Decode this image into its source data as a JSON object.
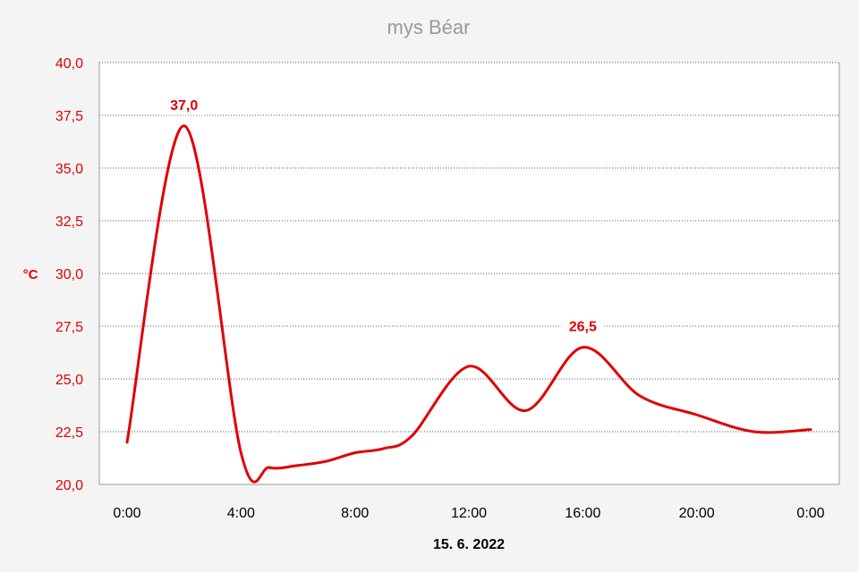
{
  "chart_data": {
    "type": "line",
    "title": "mys Béar",
    "xlabel": "15. 6. 2022",
    "ylabel": "°C",
    "ylim": [
      20,
      40
    ],
    "yticks": [
      "20,0",
      "22,5",
      "25,0",
      "27,5",
      "30,0",
      "32,5",
      "35,0",
      "37,5",
      "40,0"
    ],
    "xlim": [
      0,
      24
    ],
    "xticks": [
      "0:00",
      "4:00",
      "8:00",
      "12:00",
      "16:00",
      "20:00",
      "0:00"
    ],
    "grid": true,
    "series": [
      {
        "color": "#e00000",
        "x": [
          0,
          2,
          4,
          5,
          6,
          7,
          8,
          9,
          10,
          12,
          14,
          16,
          18,
          20,
          22,
          24
        ],
        "y": [
          22.0,
          37.0,
          21.5,
          20.8,
          20.9,
          21.1,
          21.5,
          21.7,
          22.3,
          25.6,
          23.5,
          26.5,
          24.2,
          23.3,
          22.5,
          22.6
        ]
      }
    ],
    "annotations": [
      {
        "text": "37,0",
        "x": 2,
        "y": 37.0
      },
      {
        "text": "26,5",
        "x": 16,
        "y": 26.5
      }
    ]
  }
}
